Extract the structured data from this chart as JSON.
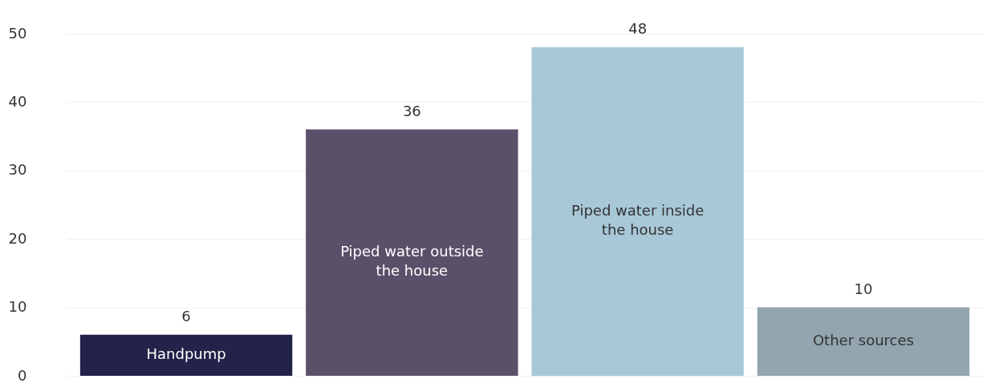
{
  "chart_data": {
    "type": "bar",
    "categories": [
      "Handpump",
      "Piped water outside the house",
      "Piped water inside the house",
      "Other sources"
    ],
    "values": [
      6,
      36,
      48,
      10
    ],
    "colors": [
      "#23224a",
      "#5a5069",
      "#a8c8d8",
      "#93a6b0"
    ],
    "ylim": [
      0,
      50
    ],
    "yticks": [
      0,
      10,
      20,
      30,
      40,
      50
    ],
    "grid": "y",
    "data_labels": true,
    "tick_labels": "y"
  }
}
